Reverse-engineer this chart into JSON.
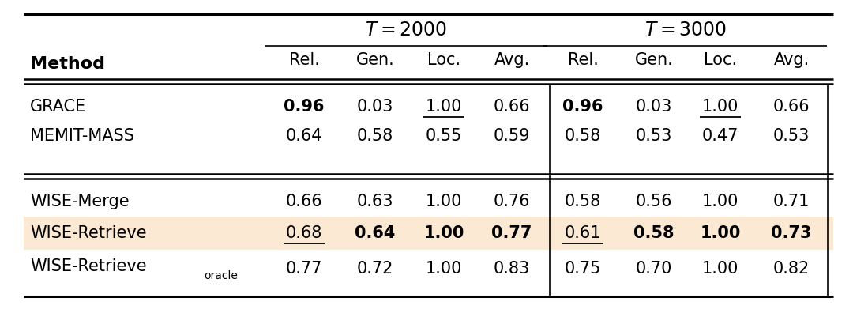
{
  "title_t2000": "$T = 2000$",
  "title_t3000": "$T = 3000$",
  "col_header": [
    "Rel.",
    "Gen.",
    "Loc.",
    "Avg.",
    "Rel.",
    "Gen.",
    "Loc.",
    "Avg."
  ],
  "method_header": "Method",
  "rows": [
    {
      "method": "GRACE",
      "values": [
        "0.96",
        "0.03",
        "1.00",
        "0.66",
        "0.96",
        "0.03",
        "1.00",
        "0.66"
      ],
      "bold": [
        true,
        false,
        false,
        false,
        true,
        false,
        false,
        false
      ],
      "underline": [
        false,
        false,
        true,
        false,
        false,
        false,
        true,
        false
      ],
      "bg": null,
      "group": 0
    },
    {
      "method": "MEMIT-MASS",
      "values": [
        "0.64",
        "0.58",
        "0.55",
        "0.59",
        "0.58",
        "0.53",
        "0.47",
        "0.53"
      ],
      "bold": [
        false,
        false,
        false,
        false,
        false,
        false,
        false,
        false
      ],
      "underline": [
        false,
        false,
        false,
        false,
        false,
        false,
        false,
        false
      ],
      "bg": null,
      "group": 0
    },
    {
      "method": "WISE-Merge",
      "values": [
        "0.66",
        "0.63",
        "1.00",
        "0.76",
        "0.58",
        "0.56",
        "1.00",
        "0.71"
      ],
      "bold": [
        false,
        false,
        false,
        false,
        false,
        false,
        false,
        false
      ],
      "underline": [
        false,
        false,
        false,
        false,
        false,
        false,
        false,
        false
      ],
      "bg": null,
      "group": 1
    },
    {
      "method": "WISE-Retrieve",
      "values": [
        "0.68",
        "0.64",
        "1.00",
        "0.77",
        "0.61",
        "0.58",
        "1.00",
        "0.73"
      ],
      "bold": [
        false,
        true,
        true,
        true,
        false,
        true,
        true,
        true
      ],
      "underline": [
        true,
        false,
        false,
        false,
        true,
        false,
        false,
        false
      ],
      "bg": "#fce9d4",
      "group": 1
    },
    {
      "method": "WISE-Retrieve_oracle",
      "values": [
        "0.77",
        "0.72",
        "1.00",
        "0.83",
        "0.75",
        "0.70",
        "1.00",
        "0.82"
      ],
      "bold": [
        false,
        false,
        false,
        false,
        false,
        false,
        false,
        false
      ],
      "underline": [
        false,
        false,
        false,
        false,
        false,
        false,
        false,
        false
      ],
      "bg": null,
      "group": 1
    }
  ],
  "highlight_color": "#fce9d4",
  "bg_color": "#ffffff",
  "line_color": "#000000",
  "figw": 10.8,
  "figh": 3.91,
  "dpi": 100
}
